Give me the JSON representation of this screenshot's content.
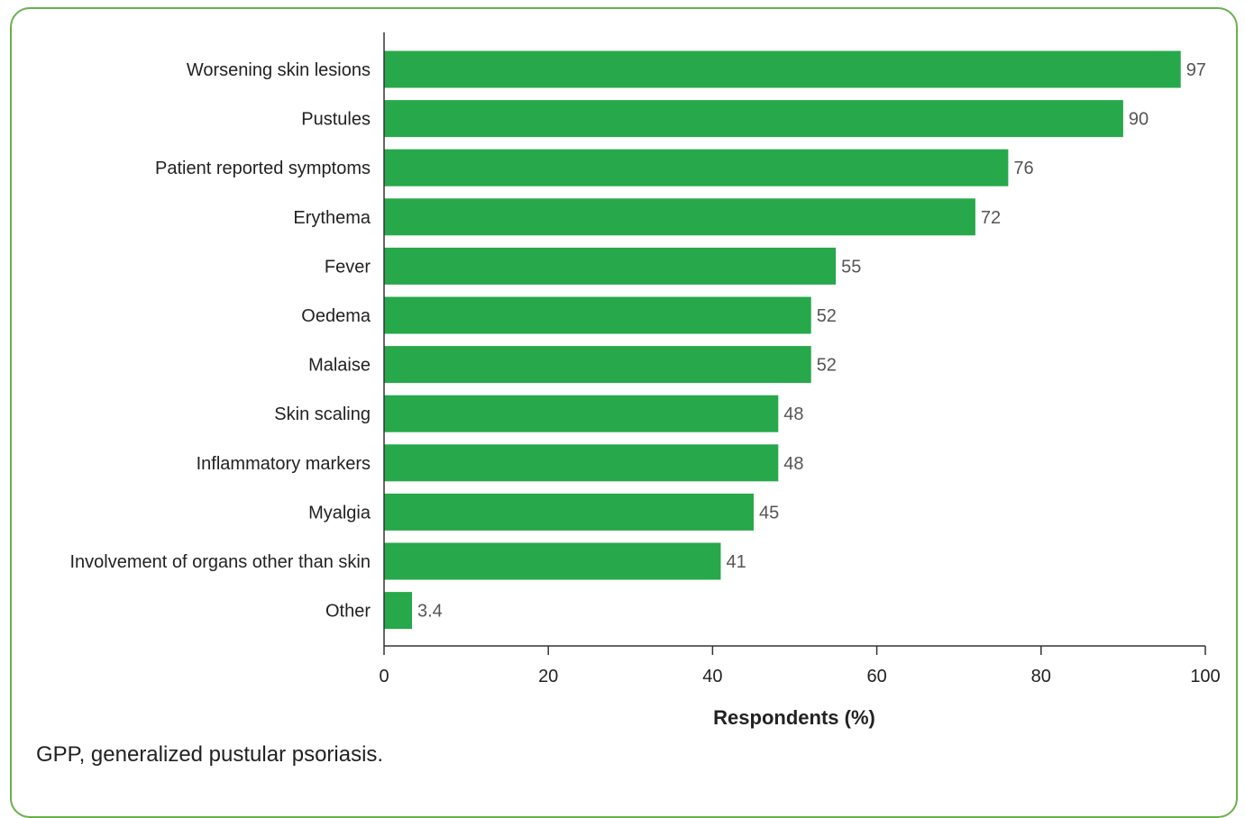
{
  "chart_data": {
    "type": "bar",
    "orientation": "horizontal",
    "categories": [
      "Worsening skin lesions",
      "Pustules",
      "Patient reported symptoms",
      "Erythema",
      "Fever",
      "Oedema",
      "Malaise",
      "Skin scaling",
      "Inflammatory markers",
      "Myalgia",
      "Involvement of organs other than skin",
      "Other"
    ],
    "values": [
      97,
      90,
      76,
      72,
      55,
      52,
      52,
      48,
      48,
      45,
      41,
      3.4
    ],
    "value_labels": [
      "97",
      "90",
      "76",
      "72",
      "55",
      "52",
      "52",
      "48",
      "48",
      "45",
      "41",
      "3.4"
    ],
    "xlabel": "Respondents (%)",
    "ylabel": "",
    "xlim": [
      0,
      100
    ],
    "xticks": [
      "0",
      "20",
      "40",
      "60",
      "80",
      "100"
    ],
    "bar_color": "#27a84a",
    "grid": false
  },
  "footnote": "GPP, generalized pustular psoriasis.",
  "frame_color": "#6ab04c"
}
